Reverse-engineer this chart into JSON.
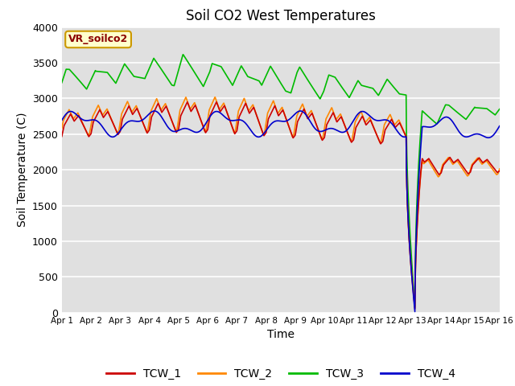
{
  "title": "Soil CO2 West Temperatures",
  "xlabel": "Time",
  "ylabel": "Soil Temperature (C)",
  "ylim": [
    0,
    4000
  ],
  "xlim": [
    0,
    15
  ],
  "xtick_labels": [
    "Apr 1",
    "Apr 2",
    "Apr 3",
    "Apr 4",
    "Apr 5",
    "Apr 6",
    "Apr 7",
    "Apr 8",
    "Apr 9",
    "Apr 10",
    "Apr 11",
    "Apr 12",
    "Apr 13",
    "Apr 14",
    "Apr 15",
    "Apr 16"
  ],
  "annotation_text": "VR_soilco2",
  "bg_color": "#e0e0e0",
  "line_colors": {
    "TCW_1": "#cc0000",
    "TCW_2": "#ff8800",
    "TCW_3": "#00bb00",
    "TCW_4": "#0000cc"
  },
  "legend_entries": [
    "TCW_1",
    "TCW_2",
    "TCW_3",
    "TCW_4"
  ]
}
